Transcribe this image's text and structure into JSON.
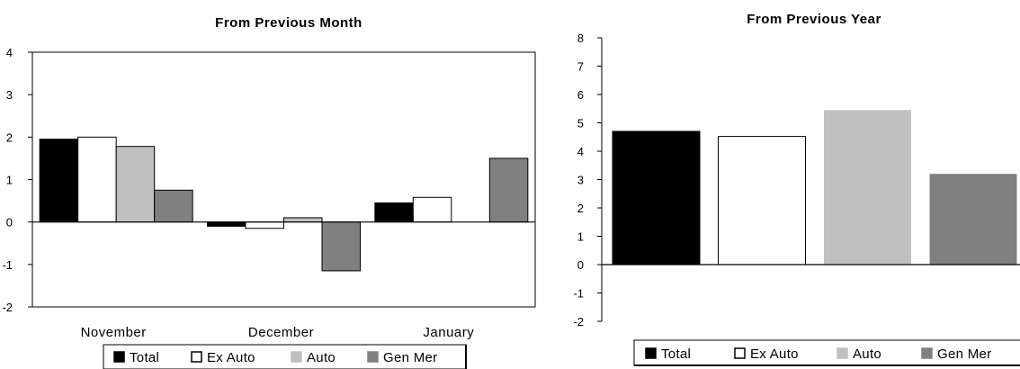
{
  "chart_data": [
    {
      "type": "bar",
      "title": "From Previous Month",
      "categories": [
        "November",
        "December",
        "January"
      ],
      "ylim": [
        -2,
        4
      ],
      "yticks": [
        -2,
        -1,
        0,
        1,
        2,
        3,
        4
      ],
      "grid": false,
      "legend": "bottom",
      "series": [
        {
          "name": "Total",
          "values": [
            1.95,
            -0.1,
            0.45
          ],
          "color": "#000000"
        },
        {
          "name": "Ex Auto",
          "values": [
            2.0,
            -0.15,
            0.58
          ],
          "color": "#ffffff"
        },
        {
          "name": "Auto",
          "values": [
            1.78,
            0.1,
            0.0
          ],
          "color": "#c0c0c0"
        },
        {
          "name": "Gen Mer",
          "values": [
            0.75,
            -1.15,
            1.5
          ],
          "color": "#808080"
        }
      ]
    },
    {
      "type": "bar",
      "title": "From Previous Year",
      "categories": [
        ""
      ],
      "ylim": [
        -2,
        8
      ],
      "yticks": [
        -2,
        -1,
        0,
        1,
        2,
        3,
        4,
        5,
        6,
        7,
        8
      ],
      "grid": false,
      "legend": "bottom",
      "series": [
        {
          "name": "Total",
          "values": [
            4.7
          ],
          "color": "#000000"
        },
        {
          "name": "Ex Auto",
          "values": [
            4.52
          ],
          "color": "#ffffff"
        },
        {
          "name": "Auto",
          "values": [
            5.45
          ],
          "color": "#c0c0c0"
        },
        {
          "name": "Gen Mer",
          "values": [
            3.2
          ],
          "color": "#808080"
        }
      ]
    }
  ]
}
